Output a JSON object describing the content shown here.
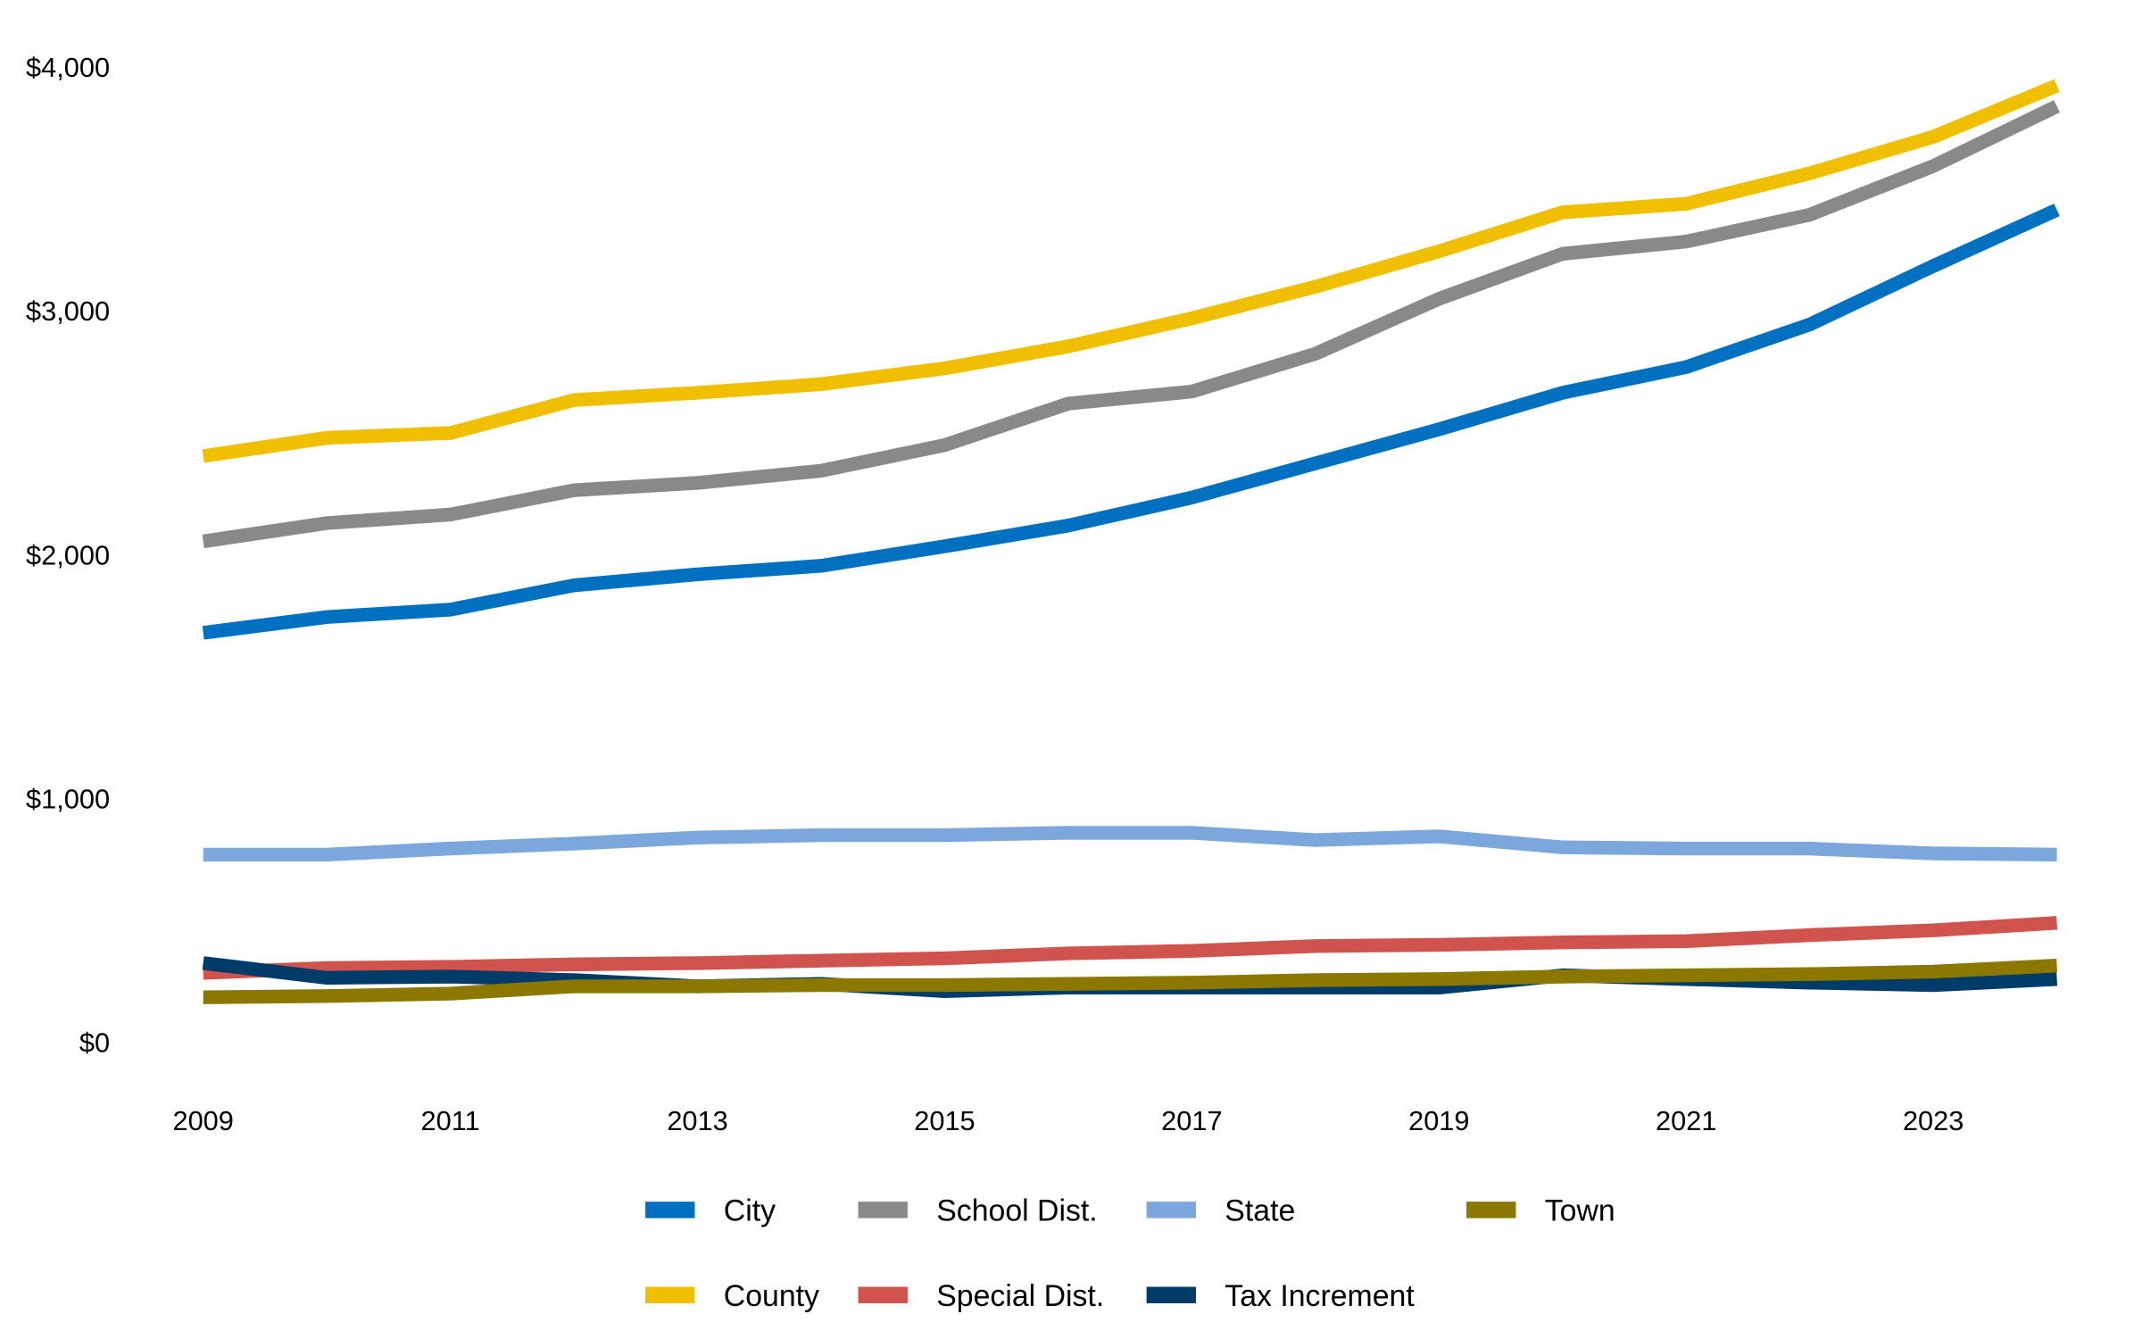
{
  "chart_data": {
    "type": "line",
    "title": "",
    "xlabel": "",
    "ylabel": "",
    "x": [
      2009,
      2010,
      2011,
      2012,
      2013,
      2014,
      2015,
      2016,
      2017,
      2018,
      2019,
      2020,
      2021,
      2022,
      2023,
      2024
    ],
    "x_tick_labels": [
      "2009",
      "2011",
      "2013",
      "2015",
      "2017",
      "2019",
      "2021",
      "2023"
    ],
    "y_tick_labels": [
      "$0",
      "$1,000",
      "$2,000",
      "$3,000",
      "$4,000"
    ],
    "y_ticks": [
      0,
      1000,
      2000,
      3000,
      4000
    ],
    "ylim": [
      0,
      4000
    ],
    "grid": false,
    "legend_position": "bottom",
    "series": [
      {
        "name": "City",
        "color": "#0070C0",
        "values": [
          1680,
          1745,
          1775,
          1875,
          1920,
          1955,
          2035,
          2120,
          2235,
          2375,
          2515,
          2665,
          2770,
          2945,
          3185,
          3415
        ]
      },
      {
        "name": "County",
        "color": "#F0C000",
        "values": [
          2405,
          2480,
          2500,
          2635,
          2665,
          2700,
          2765,
          2855,
          2970,
          3100,
          3245,
          3405,
          3440,
          3565,
          3715,
          3925
        ]
      },
      {
        "name": "School Dist.",
        "color": "#898989",
        "values": [
          2055,
          2130,
          2165,
          2265,
          2295,
          2345,
          2450,
          2620,
          2670,
          2825,
          3050,
          3235,
          3285,
          3395,
          3595,
          3840
        ]
      },
      {
        "name": "Special Dist.",
        "color": "#D0534D",
        "values": [
          285,
          305,
          310,
          320,
          325,
          335,
          345,
          365,
          375,
          395,
          400,
          410,
          415,
          440,
          460,
          490
        ]
      },
      {
        "name": "State",
        "color": "#7BA7DC",
        "values": [
          770,
          770,
          795,
          815,
          840,
          850,
          850,
          860,
          860,
          830,
          845,
          800,
          795,
          795,
          775,
          770
        ]
      },
      {
        "name": "Tax Increment",
        "color": "#003C69",
        "values": [
          325,
          265,
          270,
          255,
          230,
          240,
          210,
          225,
          225,
          225,
          225,
          275,
          260,
          245,
          235,
          260
        ]
      },
      {
        "name": "Town",
        "color": "#8C7800",
        "values": [
          185,
          190,
          200,
          230,
          230,
          235,
          235,
          240,
          245,
          255,
          260,
          270,
          275,
          280,
          290,
          315
        ]
      }
    ],
    "legend_order": [
      "City",
      "School Dist.",
      "State",
      "Town",
      "County",
      "Special Dist.",
      "Tax Increment"
    ]
  }
}
